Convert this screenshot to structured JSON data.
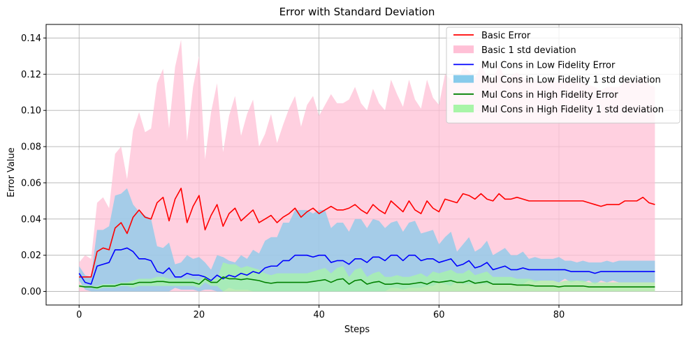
{
  "chart_data": {
    "type": "line",
    "title": "Error with Standard Deviation",
    "xlabel": "Steps",
    "ylabel": "Error Value",
    "xlim": [
      -5.5,
      100.5
    ],
    "ylim": [
      -0.0075,
      0.1475
    ],
    "xticks": [
      0,
      20,
      40,
      60,
      80
    ],
    "yticks": [
      0.0,
      0.02,
      0.04,
      0.06,
      0.08,
      0.1,
      0.12,
      0.14
    ],
    "ytick_labels": [
      "0.00",
      "0.02",
      "0.04",
      "0.06",
      "0.08",
      "0.10",
      "0.12",
      "0.14"
    ],
    "grid": true,
    "legend_position": "top-right",
    "legend": [
      {
        "label": "Basic Error",
        "kind": "line",
        "color": "#ff0000"
      },
      {
        "label": "Basic 1 std deviation",
        "kind": "band",
        "color": "#ffc0d6"
      },
      {
        "label": "Mul Cons in Low Fidelity Error",
        "kind": "line",
        "color": "#0000ff"
      },
      {
        "label": "Mul Cons in Low Fidelity 1 std deviation",
        "kind": "band",
        "color": "#87cbeb"
      },
      {
        "label": "Mul Cons in High Fidelity Error",
        "kind": "line",
        "color": "#008000"
      },
      {
        "label": "Mul Cons in High Fidelity 1 std deviation",
        "kind": "band",
        "color": "#a8f5a8"
      }
    ],
    "series": [
      {
        "name": "Basic Error",
        "color": "#ff0000",
        "band_color": "#ffc0d6",
        "mean": [
          0.008,
          0.008,
          0.008,
          0.022,
          0.024,
          0.023,
          0.035,
          0.038,
          0.032,
          0.041,
          0.045,
          0.041,
          0.04,
          0.049,
          0.052,
          0.039,
          0.051,
          0.057,
          0.038,
          0.047,
          0.053,
          0.034,
          0.042,
          0.048,
          0.036,
          0.043,
          0.046,
          0.039,
          0.042,
          0.045,
          0.038,
          0.04,
          0.042,
          0.038,
          0.041,
          0.043,
          0.046,
          0.041,
          0.044,
          0.046,
          0.043,
          0.045,
          0.047,
          0.045,
          0.045,
          0.046,
          0.048,
          0.045,
          0.043,
          0.048,
          0.045,
          0.043,
          0.05,
          0.047,
          0.044,
          0.05,
          0.045,
          0.043,
          0.05,
          0.046,
          0.044,
          0.051,
          0.05,
          0.049,
          0.054,
          0.053,
          0.051,
          0.054,
          0.051,
          0.05,
          0.054,
          0.051,
          0.051,
          0.052,
          0.051,
          0.05,
          0.05,
          0.05,
          0.05,
          0.05,
          0.05,
          0.05,
          0.05,
          0.05,
          0.05,
          0.049,
          0.048,
          0.047,
          0.048,
          0.048,
          0.048,
          0.05,
          0.05,
          0.05,
          0.052,
          0.049,
          0.048
        ],
        "upper": [
          0.016,
          0.02,
          0.018,
          0.049,
          0.052,
          0.046,
          0.076,
          0.08,
          0.062,
          0.089,
          0.099,
          0.088,
          0.09,
          0.115,
          0.123,
          0.09,
          0.124,
          0.139,
          0.083,
          0.113,
          0.13,
          0.073,
          0.099,
          0.115,
          0.077,
          0.097,
          0.108,
          0.086,
          0.098,
          0.106,
          0.08,
          0.087,
          0.098,
          0.082,
          0.092,
          0.101,
          0.108,
          0.091,
          0.103,
          0.108,
          0.097,
          0.103,
          0.109,
          0.104,
          0.104,
          0.106,
          0.113,
          0.104,
          0.1,
          0.112,
          0.104,
          0.1,
          0.117,
          0.109,
          0.102,
          0.117,
          0.106,
          0.101,
          0.117,
          0.107,
          0.103,
          0.12,
          0.117,
          0.115,
          0.124,
          0.122,
          0.118,
          0.125,
          0.119,
          0.117,
          0.125,
          0.118,
          0.119,
          0.121,
          0.118,
          0.116,
          0.117,
          0.115,
          0.116,
          0.116,
          0.116,
          0.116,
          0.116,
          0.116,
          0.116,
          0.114,
          0.113,
          0.111,
          0.113,
          0.113,
          0.113,
          0.116,
          0.116,
          0.116,
          0.119,
          0.114,
          0.113
        ],
        "lower": [
          0.0,
          0.0,
          0.0,
          0.0,
          0.0,
          0.0,
          0.0,
          0.0,
          0.0,
          0.0,
          0.0,
          0.0,
          0.0,
          0.0,
          0.0,
          0.0,
          0.0,
          0.0,
          0.0,
          0.0,
          0.0,
          0.0,
          0.0,
          0.0,
          0.0,
          0.0,
          0.0,
          0.0,
          0.0,
          0.0,
          0.0,
          0.0,
          0.0,
          0.0,
          0.0,
          0.0,
          0.0,
          0.0,
          0.0,
          0.0,
          0.0,
          0.0,
          0.0,
          0.0,
          0.0,
          0.0,
          0.0,
          0.0,
          0.0,
          0.0,
          0.0,
          0.0,
          0.0,
          0.0,
          0.0,
          0.0,
          0.0,
          0.0,
          0.0,
          0.0,
          0.0,
          0.0,
          0.0,
          0.0,
          0.0,
          0.0,
          0.0,
          0.0,
          0.0,
          0.0,
          0.0,
          0.0,
          0.0,
          0.0,
          0.0,
          0.0,
          0.0,
          0.0,
          0.0,
          0.0,
          0.0,
          0.0,
          0.0,
          0.0,
          0.0,
          0.0,
          0.0,
          0.0,
          0.0,
          0.0,
          0.0,
          0.0,
          0.0,
          0.0,
          0.0,
          0.0,
          0.0
        ]
      },
      {
        "name": "Mul Cons in Low Fidelity Error",
        "color": "#0000ff",
        "band_color": "#87cbeb",
        "mean": [
          0.01,
          0.005,
          0.004,
          0.014,
          0.015,
          0.016,
          0.023,
          0.023,
          0.024,
          0.022,
          0.018,
          0.018,
          0.017,
          0.011,
          0.01,
          0.013,
          0.008,
          0.008,
          0.01,
          0.009,
          0.009,
          0.008,
          0.006,
          0.009,
          0.007,
          0.009,
          0.008,
          0.01,
          0.009,
          0.011,
          0.01,
          0.013,
          0.014,
          0.014,
          0.017,
          0.017,
          0.02,
          0.02,
          0.02,
          0.019,
          0.02,
          0.02,
          0.016,
          0.017,
          0.017,
          0.015,
          0.018,
          0.018,
          0.016,
          0.019,
          0.019,
          0.017,
          0.02,
          0.02,
          0.017,
          0.02,
          0.02,
          0.017,
          0.018,
          0.018,
          0.016,
          0.017,
          0.018,
          0.014,
          0.015,
          0.017,
          0.013,
          0.014,
          0.016,
          0.012,
          0.013,
          0.014,
          0.012,
          0.012,
          0.013,
          0.012,
          0.012,
          0.012,
          0.012,
          0.012,
          0.012,
          0.012,
          0.011,
          0.011,
          0.011,
          0.011,
          0.01,
          0.011,
          0.011,
          0.011,
          0.011,
          0.011,
          0.011,
          0.011,
          0.011,
          0.011,
          0.011
        ],
        "upper": [
          0.014,
          0.009,
          0.008,
          0.034,
          0.034,
          0.036,
          0.053,
          0.054,
          0.057,
          0.048,
          0.044,
          0.042,
          0.04,
          0.025,
          0.024,
          0.027,
          0.015,
          0.016,
          0.02,
          0.018,
          0.019,
          0.016,
          0.012,
          0.02,
          0.019,
          0.017,
          0.016,
          0.02,
          0.018,
          0.023,
          0.021,
          0.028,
          0.03,
          0.03,
          0.038,
          0.038,
          0.045,
          0.045,
          0.045,
          0.043,
          0.045,
          0.045,
          0.035,
          0.038,
          0.038,
          0.033,
          0.04,
          0.04,
          0.035,
          0.04,
          0.039,
          0.035,
          0.038,
          0.039,
          0.033,
          0.038,
          0.039,
          0.032,
          0.033,
          0.034,
          0.026,
          0.03,
          0.033,
          0.022,
          0.026,
          0.03,
          0.022,
          0.024,
          0.028,
          0.02,
          0.022,
          0.024,
          0.02,
          0.02,
          0.022,
          0.018,
          0.019,
          0.018,
          0.018,
          0.018,
          0.019,
          0.017,
          0.017,
          0.016,
          0.017,
          0.016,
          0.016,
          0.016,
          0.017,
          0.016,
          0.017,
          0.017,
          0.017,
          0.017,
          0.017,
          0.017,
          0.017
        ],
        "lower": [
          0.006,
          0.001,
          0.0,
          0.0,
          0.0,
          0.0,
          0.0,
          0.0,
          0.0,
          0.0,
          0.0,
          0.0,
          0.0,
          0.0,
          0.0,
          0.0,
          0.002,
          0.001,
          0.001,
          0.001,
          0.0,
          0.001,
          0.001,
          0.0,
          0.0,
          0.002,
          0.001,
          0.001,
          0.001,
          0.0,
          0.0,
          0.0,
          0.0,
          0.0,
          0.0,
          0.0,
          0.0,
          0.0,
          0.0,
          0.0,
          0.0,
          0.0,
          0.0,
          0.0,
          0.0,
          0.0,
          0.0,
          0.0,
          0.0,
          0.0,
          0.0,
          0.0,
          0.002,
          0.002,
          0.001,
          0.002,
          0.002,
          0.002,
          0.003,
          0.003,
          0.005,
          0.004,
          0.003,
          0.006,
          0.004,
          0.004,
          0.004,
          0.004,
          0.004,
          0.004,
          0.004,
          0.004,
          0.004,
          0.004,
          0.004,
          0.006,
          0.005,
          0.006,
          0.006,
          0.006,
          0.005,
          0.007,
          0.005,
          0.006,
          0.005,
          0.006,
          0.004,
          0.006,
          0.005,
          0.006,
          0.005,
          0.005,
          0.005,
          0.005,
          0.005,
          0.005,
          0.005
        ]
      },
      {
        "name": "Mul Cons in High Fidelity Error",
        "color": "#008000",
        "band_color": "#a8f5a8",
        "mean": [
          0.003,
          0.0025,
          0.0025,
          0.002,
          0.003,
          0.003,
          0.003,
          0.004,
          0.004,
          0.004,
          0.005,
          0.005,
          0.005,
          0.0055,
          0.0055,
          0.005,
          0.005,
          0.005,
          0.005,
          0.005,
          0.004,
          0.007,
          0.005,
          0.005,
          0.008,
          0.007,
          0.007,
          0.0065,
          0.007,
          0.0065,
          0.006,
          0.005,
          0.0045,
          0.005,
          0.005,
          0.005,
          0.005,
          0.005,
          0.005,
          0.0055,
          0.006,
          0.0065,
          0.005,
          0.0065,
          0.007,
          0.004,
          0.006,
          0.0065,
          0.004,
          0.005,
          0.0055,
          0.004,
          0.004,
          0.0045,
          0.004,
          0.004,
          0.0045,
          0.005,
          0.004,
          0.0055,
          0.005,
          0.0055,
          0.006,
          0.005,
          0.005,
          0.006,
          0.0045,
          0.005,
          0.0055,
          0.004,
          0.004,
          0.004,
          0.004,
          0.0035,
          0.0035,
          0.0035,
          0.003,
          0.003,
          0.003,
          0.003,
          0.0025,
          0.003,
          0.003,
          0.003,
          0.003,
          0.0025,
          0.0025,
          0.0025,
          0.0025,
          0.0025,
          0.0025,
          0.0025,
          0.0025,
          0.0025,
          0.0025,
          0.0025,
          0.0025
        ],
        "upper": [
          0.004,
          0.003,
          0.003,
          0.003,
          0.004,
          0.004,
          0.004,
          0.005,
          0.005,
          0.006,
          0.007,
          0.007,
          0.007,
          0.008,
          0.008,
          0.007,
          0.007,
          0.007,
          0.007,
          0.007,
          0.006,
          0.009,
          0.007,
          0.007,
          0.016,
          0.015,
          0.015,
          0.013,
          0.014,
          0.013,
          0.012,
          0.01,
          0.009,
          0.01,
          0.01,
          0.01,
          0.01,
          0.01,
          0.01,
          0.011,
          0.012,
          0.013,
          0.01,
          0.013,
          0.014,
          0.008,
          0.012,
          0.013,
          0.008,
          0.01,
          0.011,
          0.008,
          0.008,
          0.009,
          0.008,
          0.008,
          0.009,
          0.01,
          0.008,
          0.011,
          0.01,
          0.011,
          0.012,
          0.01,
          0.01,
          0.012,
          0.009,
          0.01,
          0.011,
          0.008,
          0.008,
          0.008,
          0.008,
          0.007,
          0.007,
          0.007,
          0.006,
          0.006,
          0.006,
          0.006,
          0.005,
          0.006,
          0.006,
          0.006,
          0.006,
          0.005,
          0.005,
          0.005,
          0.005,
          0.005,
          0.005,
          0.005,
          0.005,
          0.005,
          0.005,
          0.005,
          0.005
        ],
        "lower": [
          0.002,
          0.002,
          0.002,
          0.001,
          0.002,
          0.002,
          0.002,
          0.003,
          0.003,
          0.002,
          0.003,
          0.003,
          0.003,
          0.003,
          0.003,
          0.003,
          0.003,
          0.003,
          0.003,
          0.003,
          0.002,
          0.005,
          0.003,
          0.003,
          0.0,
          0.0,
          0.0,
          0.0,
          0.0,
          0.0,
          0.0,
          0.0,
          0.0,
          0.0,
          0.0,
          0.0,
          0.0,
          0.0,
          0.0,
          0.0,
          0.0,
          0.0,
          0.0,
          0.0,
          0.0,
          0.0,
          0.0,
          0.0,
          0.0,
          0.0,
          0.0,
          0.0,
          0.0,
          0.0,
          0.0,
          0.0,
          0.0,
          0.0,
          0.0,
          0.0,
          0.0,
          0.0,
          0.0,
          0.0,
          0.0,
          0.0,
          0.0,
          0.0,
          0.0,
          0.0,
          0.0,
          0.0,
          0.0,
          0.0,
          0.0,
          0.0,
          0.0,
          0.0,
          0.0,
          0.0,
          0.0,
          0.0,
          0.0,
          0.0,
          0.0,
          0.0,
          0.0,
          0.0,
          0.0,
          0.0,
          0.0,
          0.0,
          0.0,
          0.0,
          0.0,
          0.0,
          0.0
        ]
      }
    ]
  }
}
